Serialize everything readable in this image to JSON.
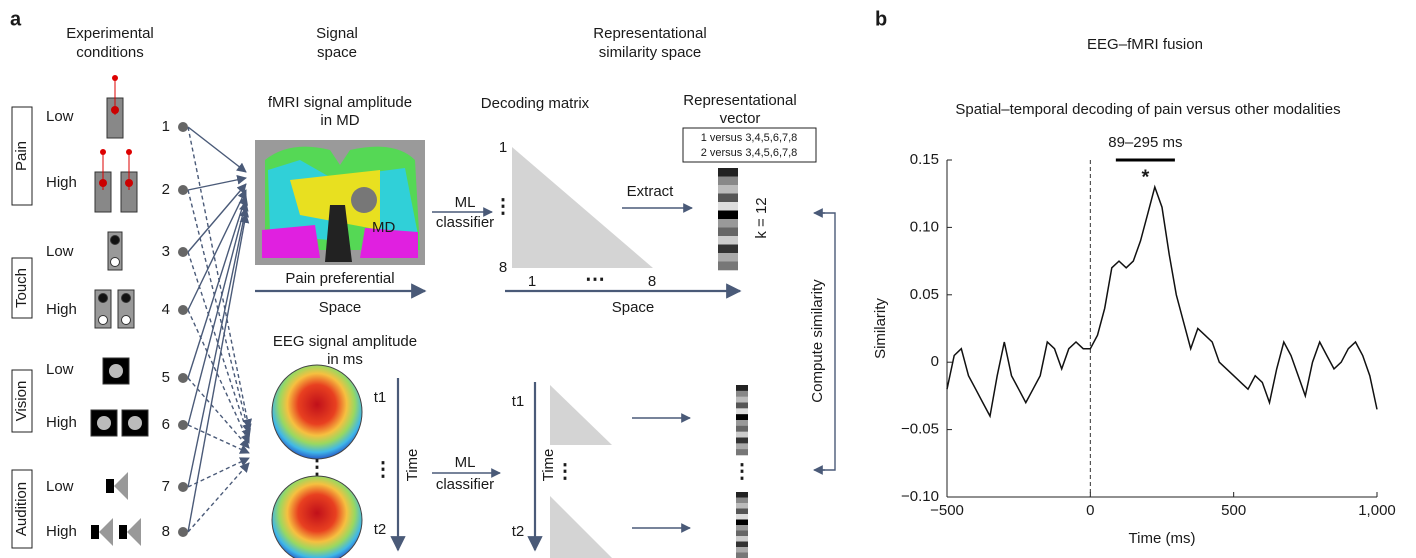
{
  "panel_a": {
    "label": "a",
    "headers": [
      [
        "Experimental",
        "conditions"
      ],
      [
        "Signal",
        "space"
      ],
      [
        "Representational",
        "similarity space"
      ]
    ],
    "modalities": [
      {
        "name": "Pain",
        "levels": [
          "Low",
          "High"
        ]
      },
      {
        "name": "Touch",
        "levels": [
          "Low",
          "High"
        ]
      },
      {
        "name": "Vision",
        "levels": [
          "Low",
          "High"
        ]
      },
      {
        "name": "Audition",
        "levels": [
          "Low",
          "High"
        ]
      }
    ],
    "nodes": [
      "1",
      "2",
      "3",
      "4",
      "5",
      "6",
      "7",
      "8"
    ],
    "fmri_title": [
      "fMRI signal amplitude",
      "in MD"
    ],
    "fmri_region": "MD",
    "classifier": [
      "ML",
      "classifier"
    ],
    "pain_preferential": "Pain preferential",
    "space": "Space",
    "decoding_matrix": "Decoding matrix",
    "matrix_row_ticks": [
      "1",
      "⋮",
      "8"
    ],
    "matrix_col_ticks": [
      "1",
      "⋯",
      "8"
    ],
    "vector_title": [
      "Representational",
      "vector"
    ],
    "vector_rows": [
      "1 versus 3,4,5,6,7,8",
      "2 versus 3,4,5,6,7,8"
    ],
    "extract": "Extract",
    "k_label": "k = 12",
    "eeg_title": [
      "EEG signal amplitude",
      "in ms"
    ],
    "time_ticks": [
      "t1",
      "⋮",
      "t2"
    ],
    "time": "Time",
    "compute_similarity": "Compute similarity"
  },
  "chart_data": {
    "type": "line",
    "panel_label": "b",
    "title": "EEG–fMRI fusion",
    "subtitle": "Spatial–temporal decoding of pain versus other modalities",
    "annotation": "89–295 ms",
    "significance": "*",
    "sig_range": [
      89,
      295
    ],
    "x_label": "Time (ms)",
    "y_label": "Similarity",
    "color": "#111111",
    "x": [
      -500,
      -475,
      -450,
      -425,
      -400,
      -375,
      -350,
      -325,
      -300,
      -275,
      -250,
      -225,
      -200,
      -175,
      -150,
      -125,
      -100,
      -75,
      -50,
      -25,
      0,
      25,
      50,
      75,
      100,
      125,
      150,
      175,
      200,
      225,
      250,
      275,
      300,
      325,
      350,
      375,
      400,
      425,
      450,
      475,
      500,
      525,
      550,
      575,
      600,
      625,
      650,
      675,
      700,
      725,
      750,
      775,
      800,
      825,
      850,
      875,
      900,
      925,
      950,
      975,
      1000
    ],
    "values": [
      -0.02,
      0.005,
      0.01,
      -0.01,
      -0.02,
      -0.03,
      -0.04,
      -0.01,
      0.015,
      -0.01,
      -0.02,
      -0.03,
      -0.02,
      -0.01,
      0.015,
      0.01,
      -0.005,
      0.01,
      0.015,
      0.01,
      0.01,
      0.02,
      0.04,
      0.07,
      0.075,
      0.07,
      0.075,
      0.09,
      0.11,
      0.13,
      0.115,
      0.08,
      0.05,
      0.03,
      0.01,
      0.025,
      0.02,
      0.015,
      0.0,
      -0.005,
      -0.01,
      -0.015,
      -0.02,
      -0.01,
      -0.015,
      -0.03,
      -0.005,
      0.015,
      0.005,
      -0.01,
      -0.025,
      0.0,
      0.015,
      0.005,
      -0.005,
      0.0,
      0.01,
      0.015,
      0.005,
      -0.01,
      -0.035
    ],
    "xlim": [
      -500,
      1000
    ],
    "ylim": [
      -0.1,
      0.15
    ],
    "xticks": [
      {
        "value": -500,
        "label": "−500"
      },
      0,
      500,
      {
        "value": 1000,
        "label": "1,000"
      }
    ],
    "yticks": [
      {
        "value": -0.1,
        "label": "−0.10"
      },
      {
        "value": -0.05,
        "label": "−0.05"
      },
      0,
      0.05,
      {
        "value": 0.1,
        "label": "0.10"
      },
      0.15
    ],
    "zero_line": 0
  }
}
